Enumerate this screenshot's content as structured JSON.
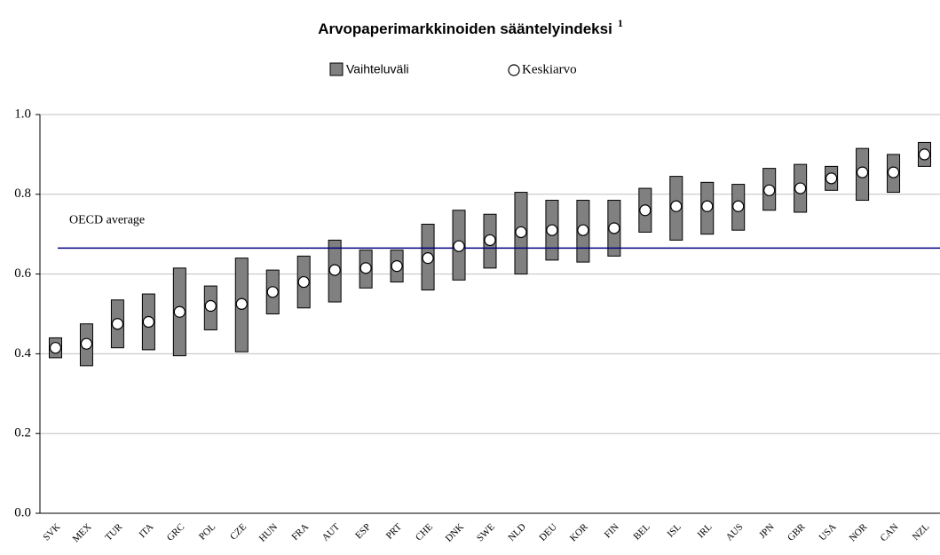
{
  "chart_data": {
    "type": "range",
    "title": "Arvopaperimarkkinoiden sääntelyindeksi",
    "title_superscript": "1",
    "categories": [
      "SVK",
      "MEX",
      "TUR",
      "ITA",
      "GRC",
      "POL",
      "CZE",
      "HUN",
      "FRA",
      "AUT",
      "ESP",
      "PRT",
      "CHE",
      "DNK",
      "SWE",
      "NLD",
      "DEU",
      "KOR",
      "FIN",
      "BEL",
      "ISL",
      "IRL",
      "AUS",
      "JPN",
      "GBR",
      "USA",
      "NOR",
      "CAN",
      "NZL"
    ],
    "series": [
      {
        "name": "Vaihteluväli",
        "color": "#808080",
        "low": [
          0.39,
          0.37,
          0.415,
          0.41,
          0.395,
          0.46,
          0.405,
          0.5,
          0.515,
          0.53,
          0.565,
          0.58,
          0.56,
          0.585,
          0.615,
          0.6,
          0.635,
          0.63,
          0.645,
          0.705,
          0.685,
          0.7,
          0.71,
          0.76,
          0.755,
          0.81,
          0.785,
          0.805,
          0.87
        ],
        "high": [
          0.44,
          0.475,
          0.535,
          0.55,
          0.615,
          0.57,
          0.64,
          0.61,
          0.645,
          0.685,
          0.66,
          0.66,
          0.725,
          0.76,
          0.75,
          0.805,
          0.785,
          0.785,
          0.785,
          0.815,
          0.845,
          0.83,
          0.825,
          0.865,
          0.875,
          0.87,
          0.915,
          0.9,
          0.93
        ]
      },
      {
        "name": "Keskiarvo",
        "color": "#ffffff",
        "values": [
          0.415,
          0.425,
          0.475,
          0.48,
          0.505,
          0.52,
          0.525,
          0.555,
          0.58,
          0.61,
          0.615,
          0.62,
          0.64,
          0.67,
          0.685,
          0.705,
          0.71,
          0.71,
          0.715,
          0.76,
          0.77,
          0.77,
          0.77,
          0.81,
          0.815,
          0.84,
          0.855,
          0.855,
          0.9
        ]
      }
    ],
    "reference_line": {
      "label": "OECD average",
      "value": 0.665,
      "color": "#000080"
    },
    "ylim": [
      0,
      1
    ],
    "yticks": [
      {
        "value": 0,
        "label": "0.0"
      },
      {
        "value": 0.2,
        "label": "0.2"
      },
      {
        "value": 0.4,
        "label": "0.4"
      },
      {
        "value": 0.6,
        "label": "0.6"
      },
      {
        "value": 0.8,
        "label": "0.8"
      },
      {
        "value": 1,
        "label": "1.0"
      }
    ],
    "grid": true
  }
}
